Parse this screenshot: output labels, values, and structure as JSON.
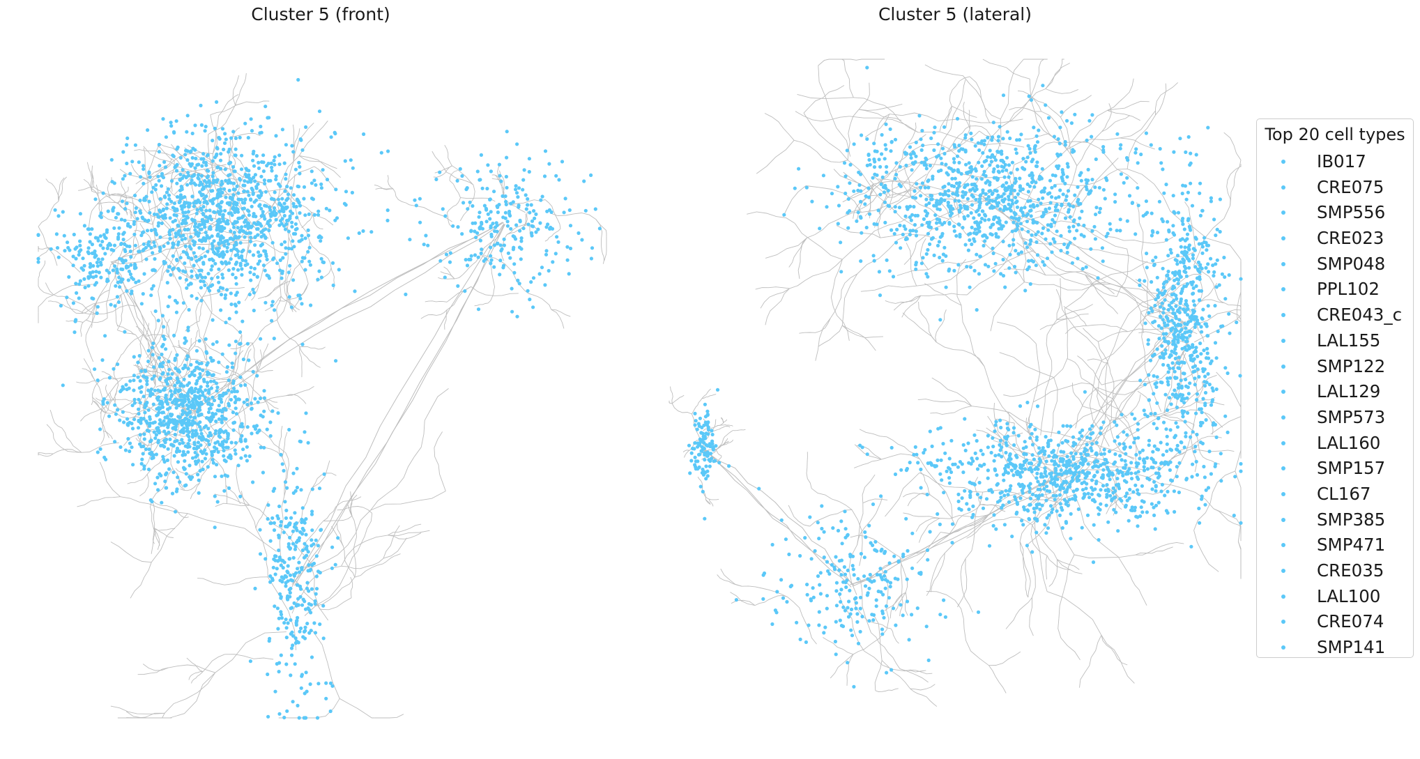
{
  "chart_data": [
    {
      "type": "scatter",
      "title": "Cluster 5 (front)",
      "view": "front",
      "axes": "off",
      "grid": false,
      "skeleton_color": "#bdbdbd",
      "marker_color": "#5bc8f8",
      "density_regions": [
        {
          "label": "upper arbor",
          "cx": 0.33,
          "cy": 0.24,
          "rx": 0.16,
          "ry": 0.12,
          "weight": 0.42
        },
        {
          "label": "upper-left arbor",
          "cx": 0.13,
          "cy": 0.31,
          "rx": 0.1,
          "ry": 0.08,
          "weight": 0.08
        },
        {
          "label": "middle arbor",
          "cx": 0.26,
          "cy": 0.54,
          "rx": 0.11,
          "ry": 0.1,
          "weight": 0.3
        },
        {
          "label": "right arbor",
          "cx": 0.82,
          "cy": 0.25,
          "rx": 0.12,
          "ry": 0.09,
          "weight": 0.09
        },
        {
          "label": "descending tract",
          "cx": 0.45,
          "cy": 0.8,
          "rx": 0.05,
          "ry": 0.18,
          "weight": 0.11
        }
      ]
    },
    {
      "type": "scatter",
      "title": "Cluster 5 (lateral)",
      "view": "lateral",
      "axes": "off",
      "grid": false,
      "skeleton_color": "#bdbdbd",
      "marker_color": "#5bc8f8",
      "density_regions": [
        {
          "label": "upper arbor",
          "cx": 0.55,
          "cy": 0.21,
          "rx": 0.24,
          "ry": 0.1,
          "weight": 0.36
        },
        {
          "label": "right arc",
          "cx": 0.9,
          "cy": 0.4,
          "rx": 0.06,
          "ry": 0.2,
          "weight": 0.22
        },
        {
          "label": "lower arc",
          "cx": 0.69,
          "cy": 0.63,
          "rx": 0.22,
          "ry": 0.07,
          "weight": 0.3
        },
        {
          "label": "lower-left tract",
          "cx": 0.32,
          "cy": 0.8,
          "rx": 0.14,
          "ry": 0.1,
          "weight": 0.08
        },
        {
          "label": "left fragment",
          "cx": 0.06,
          "cy": 0.59,
          "rx": 0.02,
          "ry": 0.06,
          "weight": 0.04
        }
      ]
    }
  ],
  "legend": {
    "title": "Top 20 cell types",
    "placement": "right",
    "marker_color": "#5bc8f8",
    "items": [
      "IB017",
      "CRE075",
      "SMP556",
      "CRE023",
      "SMP048",
      "PPL102",
      "CRE043_c",
      "LAL155",
      "SMP122",
      "LAL129",
      "SMP573",
      "LAL160",
      "SMP157",
      "CL167",
      "SMP385",
      "SMP471",
      "CRE035",
      "LAL100",
      "CRE074",
      "SMP141"
    ]
  }
}
